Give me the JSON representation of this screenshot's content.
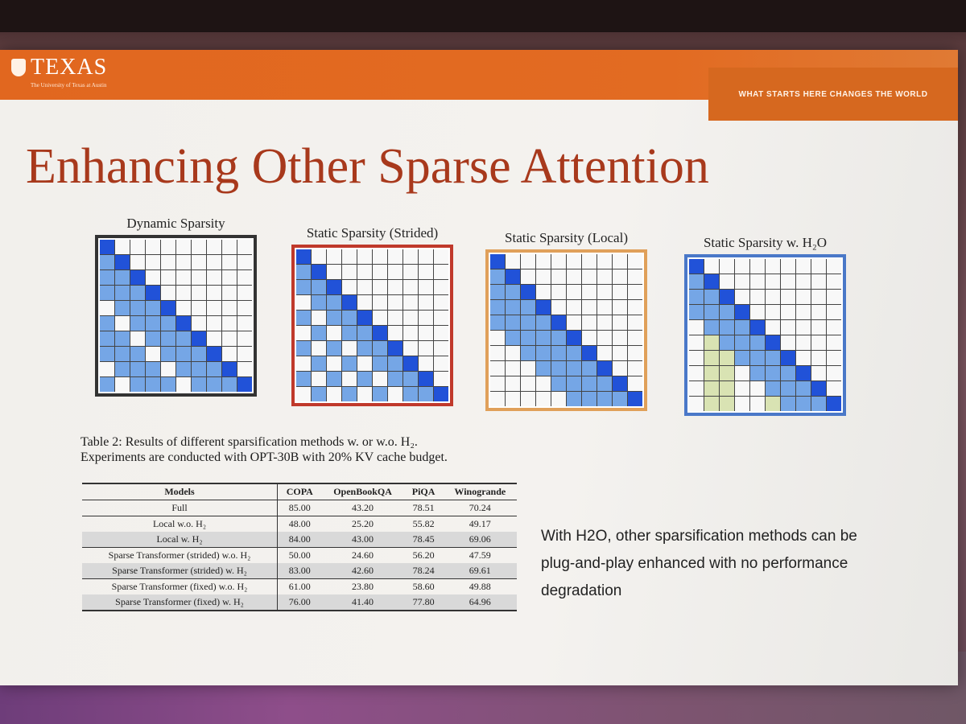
{
  "header": {
    "brand": "TEXAS",
    "brand_sub": "The University of Texas at Austin",
    "tagline": "WHAT STARTS HERE CHANGES THE WORLD"
  },
  "slide": {
    "title": "Enhancing Other Sparse Attention",
    "matrices": [
      {
        "label": "Dynamic Sparsity",
        "border": "#333333"
      },
      {
        "label": "Static Sparsity (Strided)",
        "border": "#c0392b"
      },
      {
        "label": "Static Sparsity (Local)",
        "border": "#e0a05a"
      },
      {
        "label": "Static Sparsity w. H₂O",
        "border": "#4a78c8"
      }
    ],
    "caption_line1": "Table 2: Results of different sparsification methods w. or w.o. H₂.",
    "caption_line2": "Experiments are conducted with OPT-30B with 20% KV cache budget.",
    "table": {
      "headers": [
        "Models",
        "COPA",
        "OpenBookQA",
        "PiQA",
        "Winogrande"
      ],
      "rows": [
        {
          "model": "Full",
          "values": [
            "85.00",
            "43.20",
            "78.51",
            "70.24"
          ],
          "grey": false
        },
        {
          "model": "Local w.o. H₂",
          "values": [
            "48.00",
            "25.20",
            "55.82",
            "49.17"
          ],
          "grey": false
        },
        {
          "model": "Local w. H₂",
          "values": [
            "84.00",
            "43.00",
            "78.45",
            "69.06"
          ],
          "grey": true
        },
        {
          "model": "Sparse Transformer (strided) w.o. H₂",
          "values": [
            "50.00",
            "24.60",
            "56.20",
            "47.59"
          ],
          "grey": false
        },
        {
          "model": "Sparse Transformer (strided) w. H₂",
          "values": [
            "83.00",
            "42.60",
            "78.24",
            "69.61"
          ],
          "grey": true
        },
        {
          "model": "Sparse Transformer (fixed) w.o. H₂",
          "values": [
            "61.00",
            "23.80",
            "58.60",
            "49.88"
          ],
          "grey": false
        },
        {
          "model": "Sparse Transformer (fixed) w. H₂",
          "values": [
            "76.00",
            "41.40",
            "77.80",
            "64.96"
          ],
          "grey": true
        }
      ]
    },
    "note": "With H2O, other sparsification methods can be plug-and-play enhanced with no performance degradation"
  }
}
